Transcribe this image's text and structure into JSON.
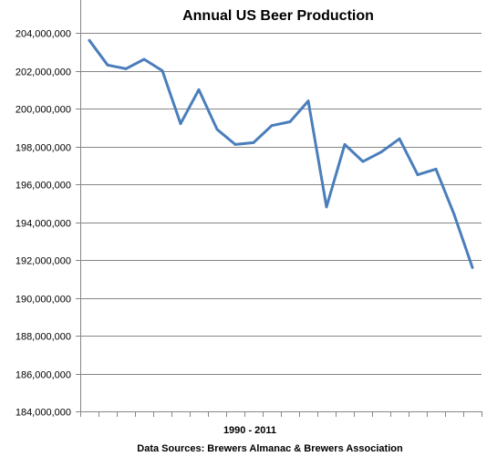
{
  "chart_data": {
    "type": "line",
    "title": "Annual US Beer Production",
    "xlabel": "1990 - 2011",
    "source": "Data Sources: Brewers Almanac & Brewers Association",
    "ylabel": "",
    "ylim": [
      184000000,
      204000000
    ],
    "y_ticks": [
      184000000,
      186000000,
      188000000,
      190000000,
      192000000,
      194000000,
      196000000,
      198000000,
      200000000,
      202000000,
      204000000
    ],
    "y_tick_labels": [
      "184,000,000",
      "186,000,000",
      "188,000,000",
      "190,000,000",
      "192,000,000",
      "194,000,000",
      "196,000,000",
      "198,000,000",
      "200,000,000",
      "202,000,000",
      "204,000,000"
    ],
    "x": [
      1990,
      1991,
      1992,
      1993,
      1994,
      1995,
      1996,
      1997,
      1998,
      1999,
      2000,
      2001,
      2002,
      2003,
      2004,
      2005,
      2006,
      2007,
      2008,
      2009,
      2010,
      2011
    ],
    "series": [
      {
        "values": [
          203600000,
          202300000,
          202100000,
          202600000,
          202000000,
          199200000,
          201000000,
          198900000,
          198100000,
          198200000,
          199100000,
          199300000,
          200400000,
          194800000,
          198100000,
          197200000,
          197700000,
          198400000,
          196500000,
          196800000,
          194400000,
          191600000
        ],
        "color": "#4a7ebb"
      }
    ],
    "grid": true,
    "legend": "none"
  }
}
